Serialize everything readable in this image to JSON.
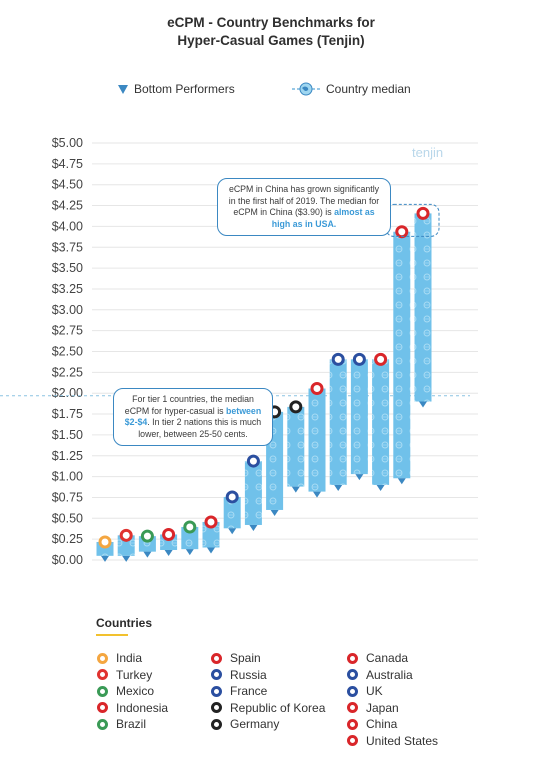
{
  "title_line1": "eCPM - Country Benchmarks for",
  "title_line2": "Hyper-Casual Games (Tenjin)",
  "legend": {
    "bottom_label": "Bottom Performers",
    "median_label": "Country median"
  },
  "watermark": "tenjin",
  "note_china": {
    "part1": "eCPM in China has grown significantly in the first half of 2019. The median for eCPM in China ($3.90) is ",
    "highlight": "almost as high as in USA."
  },
  "note_tier": {
    "part1": "For tier 1 countries, the median eCPM for hyper-casual is ",
    "highlight": "between $2-$4",
    "part2": ". In tier 2 nations this is much lower, between 25-50 cents."
  },
  "countries_heading": "Countries",
  "chart_data": {
    "type": "bar",
    "title": "eCPM - Country Benchmarks for Hyper-Casual Games (Tenjin)",
    "ylim": [
      0,
      5
    ],
    "ytick_step": 0.25,
    "y_ticks": [
      "$0.00",
      "$0.25",
      "$0.50",
      "$0.75",
      "$1.00",
      "$1.25",
      "$1.50",
      "$1.75",
      "$2.00",
      "$2.25",
      "$2.50",
      "$2.75",
      "$3.00",
      "$3.25",
      "$3.50",
      "$3.75",
      "$4.00",
      "$4.25",
      "$4.50",
      "$4.75",
      "$5.00"
    ],
    "grid": true,
    "tier1_threshold": 1.97,
    "categories": [
      "India",
      "Turkey",
      "Mexico",
      "Indonesia",
      "Brazil",
      "Spain",
      "Russia",
      "France",
      "Republic of Korea",
      "Germany",
      "Canada",
      "Australia",
      "UK",
      "Japan",
      "China",
      "United States"
    ],
    "series": [
      {
        "name": "Bottom Performers",
        "values": [
          0.05,
          0.05,
          0.1,
          0.12,
          0.13,
          0.15,
          0.38,
          0.42,
          0.6,
          0.88,
          0.82,
          0.9,
          1.03,
          0.9,
          0.98,
          1.9
        ]
      },
      {
        "name": "Country median",
        "values": [
          0.18,
          0.26,
          0.25,
          0.27,
          0.36,
          0.42,
          0.72,
          1.15,
          1.74,
          1.8,
          2.02,
          2.37,
          2.37,
          2.37,
          3.9,
          4.12
        ]
      }
    ],
    "flag_colors": [
      "#f4a640",
      "#e0322f",
      "#3a9a56",
      "#d9262a",
      "#3a9a56",
      "#d9262a",
      "#2b4fa0",
      "#2b4fa0",
      "#222222",
      "#222222",
      "#d9262a",
      "#2b4fa0",
      "#2b4fa0",
      "#d9262a",
      "#d9262a",
      "#d9262a"
    ],
    "bar_color": "#6fbfe8"
  },
  "countries": [
    {
      "name": "India",
      "color": "#f4a640"
    },
    {
      "name": "Turkey",
      "color": "#e0322f"
    },
    {
      "name": "Mexico",
      "color": "#3a9a56"
    },
    {
      "name": "Indonesia",
      "color": "#d9262a"
    },
    {
      "name": "Brazil",
      "color": "#3a9a56"
    },
    {
      "name": "Spain",
      "color": "#d9262a"
    },
    {
      "name": "Russia",
      "color": "#2b4fa0"
    },
    {
      "name": "France",
      "color": "#2b4fa0"
    },
    {
      "name": "Republic of Korea",
      "color": "#222222"
    },
    {
      "name": "Germany",
      "color": "#222222"
    },
    {
      "name": "Canada",
      "color": "#d9262a"
    },
    {
      "name": "Australia",
      "color": "#2b4fa0"
    },
    {
      "name": "UK",
      "color": "#2b4fa0"
    },
    {
      "name": "Japan",
      "color": "#d9262a"
    },
    {
      "name": "China",
      "color": "#d9262a"
    },
    {
      "name": "United States",
      "color": "#d9262a"
    }
  ]
}
